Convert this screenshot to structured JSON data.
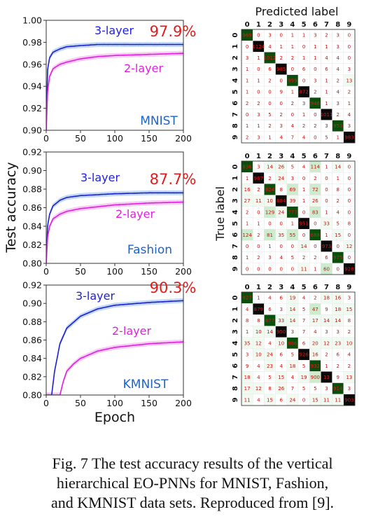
{
  "figure": {
    "y_axis_label": "Test accuracy",
    "x_axis_label": "Epoch",
    "cm_top_label": "Predicted label",
    "cm_side_label": "True label",
    "colors": {
      "three_layer": "#1f1fd6",
      "two_layer": "#e020e0",
      "band3": "#a8c8ee",
      "band2": "#f4b8f0",
      "accuracy_text": "#e41b1b",
      "dataset_text": "#1b64c8"
    }
  },
  "caption": {
    "lines": [
      "Fig. 7 The test accuracy results of the vertical",
      "hierarchical EO-PNNs for MNIST, Fashion,",
      "and KMNIST data sets. Reproduced from [9]."
    ]
  },
  "chart_data": [
    {
      "type": "line",
      "dataset": "MNIST",
      "accuracy_label": "97.9%",
      "xlim": [
        0,
        200
      ],
      "ylim": [
        0.9,
        1.0
      ],
      "xticks": [
        "0",
        "50",
        "100",
        "150",
        "200"
      ],
      "yticks": [
        "0.90",
        "0.92",
        "0.94",
        "0.96",
        "0.98",
        "1.00"
      ],
      "series": [
        {
          "name": "3-layer",
          "x": [
            0,
            2,
            5,
            10,
            20,
            30,
            50,
            75,
            100,
            150,
            200
          ],
          "values": [
            0.9,
            0.955,
            0.966,
            0.971,
            0.974,
            0.976,
            0.977,
            0.978,
            0.978,
            0.978,
            0.978
          ]
        },
        {
          "name": "2-layer",
          "x": [
            0,
            2,
            5,
            10,
            20,
            30,
            50,
            75,
            100,
            150,
            200
          ],
          "values": [
            0.9,
            0.935,
            0.949,
            0.956,
            0.96,
            0.962,
            0.965,
            0.967,
            0.968,
            0.969,
            0.97
          ]
        }
      ]
    },
    {
      "type": "line",
      "dataset": "Fashion",
      "accuracy_label": "87.7%",
      "xlim": [
        0,
        200
      ],
      "ylim": [
        0.8,
        0.92
      ],
      "xticks": [
        "0",
        "50",
        "100",
        "150",
        "200"
      ],
      "yticks": [
        "0.80",
        "0.82",
        "0.84",
        "0.86",
        "0.88",
        "0.90",
        "0.92"
      ],
      "series": [
        {
          "name": "3-layer",
          "x": [
            0,
            2,
            5,
            10,
            20,
            30,
            50,
            75,
            100,
            150,
            200
          ],
          "values": [
            0.8,
            0.84,
            0.853,
            0.862,
            0.868,
            0.871,
            0.873,
            0.874,
            0.875,
            0.876,
            0.876
          ]
        },
        {
          "name": "2-layer",
          "x": [
            0,
            2,
            5,
            10,
            20,
            30,
            50,
            75,
            100,
            150,
            200
          ],
          "values": [
            0.8,
            0.828,
            0.84,
            0.848,
            0.853,
            0.856,
            0.859,
            0.861,
            0.863,
            0.865,
            0.866
          ]
        }
      ]
    },
    {
      "type": "line",
      "dataset": "KMNIST",
      "accuracy_label": "90.3%",
      "xlim": [
        0,
        200
      ],
      "ylim": [
        0.8,
        0.92
      ],
      "xticks": [
        "0",
        "50",
        "100",
        "150",
        "200"
      ],
      "yticks": [
        "0.80",
        "0.82",
        "0.84",
        "0.86",
        "0.88",
        "0.90",
        "0.92"
      ],
      "series": [
        {
          "name": "3-layer",
          "x": [
            0,
            8,
            12,
            20,
            30,
            50,
            75,
            100,
            150,
            200
          ],
          "values": [
            0.8,
            0.8,
            0.825,
            0.856,
            0.873,
            0.886,
            0.894,
            0.898,
            0.901,
            0.903
          ]
        },
        {
          "name": "2-layer",
          "x": [
            0,
            20,
            25,
            30,
            40,
            50,
            75,
            100,
            150,
            200
          ],
          "values": [
            0.8,
            0.8,
            0.815,
            0.826,
            0.834,
            0.84,
            0.848,
            0.852,
            0.856,
            0.858
          ]
        }
      ]
    },
    {
      "type": "heatmap",
      "dataset": "MNIST",
      "xlabel": "Predicted label",
      "ylabel": "True label",
      "labels": [
        "0",
        "1",
        "2",
        "3",
        "4",
        "5",
        "6",
        "7",
        "8",
        "9"
      ],
      "matrix": [
        [
          969,
          0,
          3,
          0,
          1,
          1,
          3,
          2,
          3,
          0
        ],
        [
          0,
          1124,
          4,
          1,
          1,
          0,
          1,
          1,
          3,
          0
        ],
        [
          3,
          1,
          1012,
          2,
          2,
          1,
          1,
          4,
          4,
          0
        ],
        [
          1,
          0,
          6,
          985,
          0,
          6,
          0,
          6,
          4,
          3
        ],
        [
          1,
          1,
          2,
          0,
          959,
          0,
          3,
          1,
          2,
          13
        ],
        [
          1,
          0,
          0,
          9,
          1,
          872,
          2,
          1,
          4,
          2
        ],
        [
          2,
          2,
          0,
          0,
          2,
          3,
          946,
          1,
          3,
          1
        ],
        [
          0,
          3,
          5,
          2,
          0,
          1,
          0,
          1011,
          2,
          4
        ],
        [
          1,
          1,
          2,
          3,
          4,
          2,
          2,
          3,
          953,
          3
        ],
        [
          2,
          3,
          1,
          4,
          7,
          4,
          0,
          5,
          1,
          983
        ]
      ]
    },
    {
      "type": "heatmap",
      "dataset": "Fashion",
      "labels": [
        "0",
        "1",
        "2",
        "3",
        "4",
        "5",
        "6",
        "7",
        "8",
        "9"
      ],
      "matrix": [
        [
          836,
          3,
          14,
          26,
          5,
          4,
          114,
          1,
          14,
          0
        ],
        [
          1,
          967,
          2,
          24,
          3,
          0,
          2,
          0,
          1,
          0
        ],
        [
          16,
          2,
          824,
          8,
          69,
          1,
          72,
          0,
          8,
          0
        ],
        [
          27,
          11,
          10,
          884,
          39,
          1,
          26,
          0,
          2,
          0
        ],
        [
          2,
          0,
          129,
          24,
          777,
          0,
          83,
          1,
          4,
          0
        ],
        [
          1,
          1,
          0,
          0,
          1,
          951,
          0,
          33,
          5,
          8
        ],
        [
          124,
          2,
          81,
          35,
          55,
          0,
          688,
          1,
          15,
          0
        ],
        [
          0,
          0,
          1,
          0,
          0,
          14,
          0,
          973,
          0,
          12
        ],
        [
          1,
          2,
          3,
          4,
          5,
          2,
          2,
          6,
          975,
          0
        ],
        [
          0,
          0,
          0,
          0,
          0,
          11,
          1,
          60,
          0,
          928
        ]
      ]
    },
    {
      "type": "heatmap",
      "dataset": "KMNIST",
      "labels": [
        "0",
        "1",
        "2",
        "3",
        "4",
        "5",
        "6",
        "7",
        "8",
        "9"
      ],
      "matrix": [
        [
          927,
          1,
          4,
          6,
          19,
          4,
          2,
          18,
          16,
          3
        ],
        [
          4,
          879,
          6,
          3,
          14,
          5,
          47,
          9,
          18,
          15
        ],
        [
          8,
          8,
          877,
          33,
          14,
          7,
          17,
          14,
          14,
          8
        ],
        [
          1,
          10,
          14,
          950,
          3,
          7,
          4,
          3,
          3,
          2
        ],
        [
          35,
          12,
          4,
          10,
          886,
          6,
          20,
          12,
          23,
          10
        ],
        [
          3,
          10,
          24,
          6,
          5,
          926,
          16,
          2,
          6,
          4
        ],
        [
          9,
          4,
          23,
          4,
          18,
          5,
          932,
          1,
          2,
          2
        ],
        [
          18,
          4,
          5,
          15,
          4,
          19,
          900,
          13,
          9,
          13
        ],
        [
          17,
          12,
          8,
          26,
          7,
          5,
          5,
          3,
          914,
          3
        ],
        [
          11,
          4,
          15,
          6,
          24,
          0,
          15,
          11,
          11,
          903
        ]
      ]
    }
  ]
}
